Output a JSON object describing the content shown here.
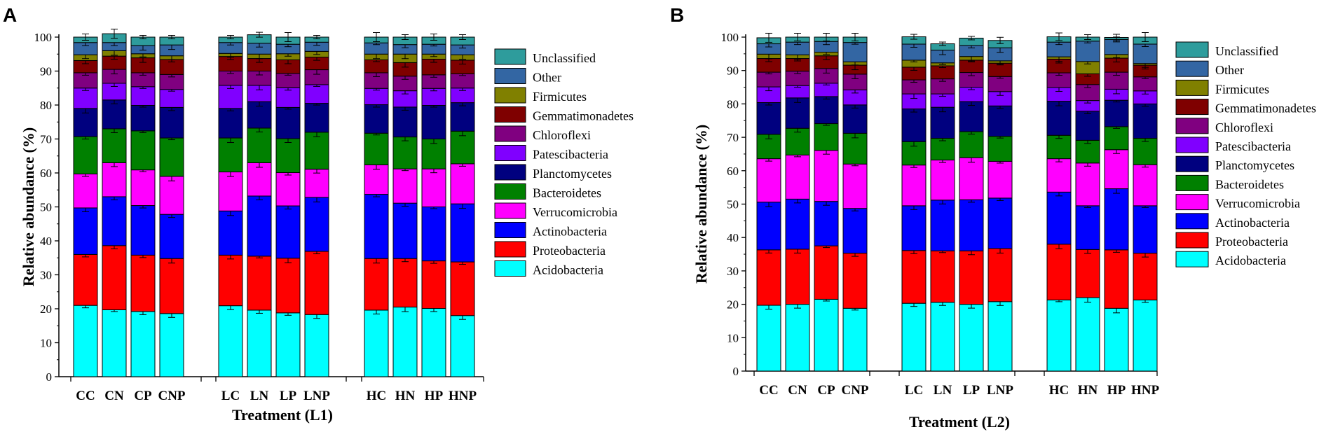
{
  "colors": {
    "Acidobacteria": "#00FFFF",
    "Proteobacteria": "#FF0000",
    "Actinobacteria": "#0000FF",
    "Verrucomicrobia": "#FF00FF",
    "Bacteroidetes": "#008000",
    "Planctomycetes": "#00007F",
    "Patescibacteria": "#8000FF",
    "Chloroflexi": "#800080",
    "Gemmatimonadetes": "#7F0000",
    "Firmicutes": "#808000",
    "Other": "#3366A3",
    "Unclassified": "#2E9C9C"
  },
  "chart_data": [
    {
      "panel_label": "A",
      "type": "bar",
      "stacked": true,
      "title": "",
      "xlabel": "Treatment (L1)",
      "ylabel": "Relative abundance (%)",
      "ylim": [
        0,
        100
      ],
      "yticks": [
        "0",
        "10",
        "20",
        "30",
        "40",
        "50",
        "60",
        "70",
        "80",
        "90",
        "100"
      ],
      "categories": [
        "CC",
        "CN",
        "CP",
        "CNP",
        "LC",
        "LN",
        "LP",
        "LNP",
        "HC",
        "HN",
        "HP",
        "HNP"
      ],
      "groups": [
        [
          0,
          1,
          2,
          3
        ],
        [
          4,
          5,
          6,
          7
        ],
        [
          8,
          9,
          10,
          11
        ]
      ],
      "legend": [
        "Unclassified",
        "Other",
        "Firmicutes",
        "Gemmatimonadetes",
        "Chloroflexi",
        "Patescibacteria",
        "Planctomycetes",
        "Bacteroidetes",
        "Verrucomicrobia",
        "Actinobacteria",
        "Proteobacteria",
        "Acidobacteria"
      ],
      "series": [
        {
          "name": "Acidobacteria",
          "values": [
            21,
            19.7,
            19.2,
            18.6,
            20.9,
            19.6,
            18.8,
            18.3,
            19.6,
            20.5,
            20.1,
            18
          ]
        },
        {
          "name": "Proteobacteria",
          "values": [
            15,
            18.9,
            16.6,
            16.2,
            14.9,
            15.9,
            16.1,
            18.6,
            15.2,
            14.3,
            14,
            15.8
          ]
        },
        {
          "name": "Actinobacteria",
          "values": [
            13.7,
            14.4,
            14.6,
            13,
            13,
            17.7,
            15.4,
            15.9,
            18.9,
            16.3,
            15.9,
            17.1
          ]
        },
        {
          "name": "Verrucomicrobia",
          "values": [
            10,
            10,
            10.5,
            11.2,
            11.5,
            9.8,
            9.8,
            8.3,
            8.7,
            10.1,
            11.2,
            11.8
          ]
        },
        {
          "name": "Bacteroidetes",
          "values": [
            11,
            10,
            11.5,
            11.3,
            10,
            10.2,
            10,
            10.9,
            9.3,
            9.4,
            8.8,
            9.6
          ]
        },
        {
          "name": "Planctomycetes",
          "values": [
            8.3,
            8.5,
            7.5,
            9,
            8.7,
            7.8,
            9.2,
            8.5,
            8.4,
            8.8,
            9.9,
            8.4
          ]
        },
        {
          "name": "Patescibacteria",
          "values": [
            6,
            4.9,
            5.5,
            5.3,
            6.8,
            4.8,
            5.8,
            5.5,
            4.8,
            4.8,
            5,
            4.3
          ]
        },
        {
          "name": "Chloroflexi",
          "values": [
            4.5,
            4.1,
            4.1,
            4.4,
            4.2,
            4.2,
            4.2,
            4.4,
            4.6,
            4.3,
            4,
            4.2
          ]
        },
        {
          "name": "Gemmatimonadetes",
          "values": [
            3.6,
            3.9,
            4.4,
            4.4,
            4.3,
            3.7,
            4,
            3.7,
            3.8,
            4,
            4.6,
            4
          ]
        },
        {
          "name": "Firmicutes",
          "values": [
            1.7,
            1.6,
            1.2,
            1.1,
            0.9,
            1.3,
            1.8,
            1.7,
            1.7,
            2.5,
            1.5,
            1.6
          ]
        },
        {
          "name": "Other",
          "values": [
            3.6,
            2.4,
            2.4,
            3.2,
            3.2,
            3.2,
            2.8,
            2.7,
            3.3,
            2.8,
            2.9,
            2.9
          ]
        },
        {
          "name": "Unclassified",
          "values": [
            1.6,
            2.6,
            2.5,
            2.3,
            1.6,
            2.5,
            2.1,
            1.5,
            1.7,
            2.2,
            2.1,
            2.3
          ]
        }
      ]
    },
    {
      "panel_label": "B",
      "type": "bar",
      "stacked": true,
      "title": "",
      "xlabel": "Treatment (L2)",
      "ylabel": "Relative abundance (%)",
      "ylim": [
        0,
        100
      ],
      "yticks": [
        "0",
        "10",
        "20",
        "30",
        "40",
        "50",
        "60",
        "70",
        "80",
        "90",
        "100"
      ],
      "categories": [
        "CC",
        "CN",
        "CP",
        "CNP",
        "LC",
        "LN",
        "LP",
        "LNP",
        "HC",
        "HN",
        "HP",
        "HNP"
      ],
      "groups": [
        [
          0,
          1,
          2,
          3
        ],
        [
          4,
          5,
          6,
          7
        ],
        [
          8,
          9,
          10,
          11
        ]
      ],
      "legend": [
        "Unclassified",
        "Other",
        "Firmicutes",
        "Gemmatimonadetes",
        "Chloroflexi",
        "Patescibacteria",
        "Planctomycetes",
        "Bacteroidetes",
        "Verrucomicrobia",
        "Actinobacteria",
        "Proteobacteria",
        "Acidobacteria"
      ],
      "series": [
        {
          "name": "Acidobacteria",
          "values": [
            19.7,
            20,
            21.5,
            18.8,
            20.3,
            20.6,
            20,
            20.8,
            21.3,
            22,
            18.8,
            21.3
          ]
        },
        {
          "name": "Proteobacteria",
          "values": [
            16.6,
            16.5,
            16,
            16.5,
            15.8,
            15.4,
            16,
            15.9,
            16.7,
            14.4,
            17.5,
            14
          ]
        },
        {
          "name": "Actinobacteria",
          "values": [
            14.3,
            15,
            13.3,
            13.4,
            13.4,
            15.2,
            15.3,
            15.1,
            15.6,
            13.1,
            18.3,
            14.2
          ]
        },
        {
          "name": "Verrucomicrobia",
          "values": [
            13,
            13.2,
            15.3,
            13.3,
            12.2,
            12,
            12.6,
            11,
            10,
            12.8,
            11.7,
            12.3
          ]
        },
        {
          "name": "Bacteroidetes",
          "values": [
            7.3,
            8,
            8,
            9.2,
            7,
            6.5,
            7.8,
            7.5,
            7,
            6.8,
            6.9,
            7.9
          ]
        },
        {
          "name": "Planctomycetes",
          "values": [
            9.5,
            9.1,
            8.1,
            8.5,
            9.8,
            9.3,
            9,
            9.1,
            10.2,
            8.7,
            7.9,
            10.3
          ]
        },
        {
          "name": "Patescibacteria",
          "values": [
            4.7,
            3.7,
            4,
            4.5,
            4.5,
            4,
            4.3,
            4.3,
            4.1,
            3.2,
            3.3,
            3.9
          ]
        },
        {
          "name": "Chloroflexi",
          "values": [
            4.4,
            4.3,
            4.4,
            4.7,
            4.2,
            4.5,
            4.4,
            4.5,
            4.4,
            4.8,
            5.1,
            4.2
          ]
        },
        {
          "name": "Gemmatimonadetes",
          "values": [
            4.1,
            3.8,
            3.8,
            2.7,
            3.8,
            3.9,
            3.7,
            4,
            4.1,
            3.2,
            4.2,
            3.5
          ]
        },
        {
          "name": "Firmicutes",
          "values": [
            1.3,
            1.1,
            1.1,
            1,
            2.1,
            0.9,
            1.1,
            0.7,
            0.7,
            3.7,
            1.1,
            0.5
          ]
        },
        {
          "name": "Other",
          "values": [
            3.1,
            3.8,
            3.2,
            5.8,
            4.8,
            3.8,
            3.3,
            3.9,
            4.4,
            6.1,
            4.5,
            5.8
          ]
        },
        {
          "name": "Unclassified",
          "values": [
            1.8,
            1.5,
            1.3,
            1.6,
            2.2,
            1.9,
            2.2,
            2.2,
            1.6,
            1.2,
            0.6,
            2.1
          ]
        }
      ]
    }
  ]
}
